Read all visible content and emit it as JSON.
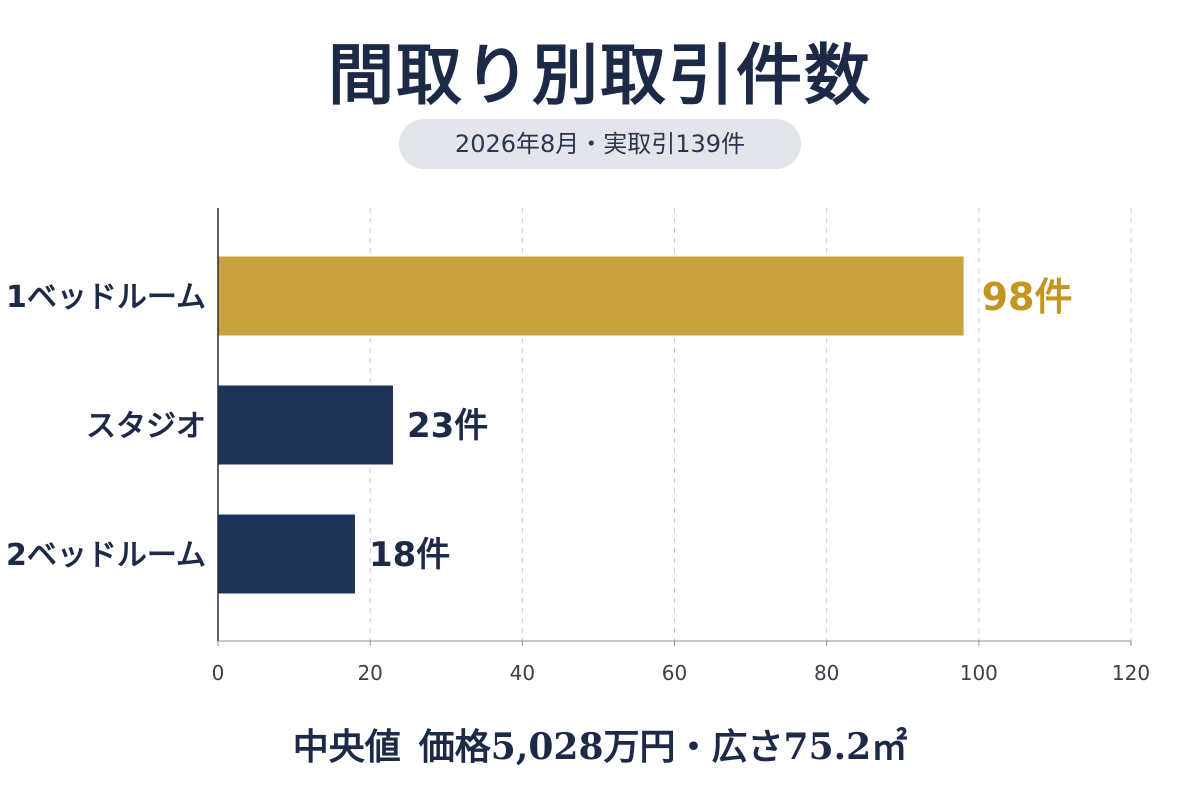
{
  "title": "間取り別取引件数",
  "subtitle": "2026年8月・実取引139件",
  "chart_data": {
    "type": "bar",
    "orientation": "horizontal",
    "categories": [
      "1ベッドルーム",
      "スタジオ",
      "2ベッドルーム"
    ],
    "values": [
      98,
      23,
      18
    ],
    "value_labels": [
      "98件",
      "23件",
      "18件"
    ],
    "bar_colors": [
      "#c9a13d",
      "#1f3358",
      "#1f3358"
    ],
    "value_label_colors": [
      "#c4951f",
      "#1c2a48",
      "#1c2a48"
    ],
    "xlim": [
      0,
      120
    ],
    "xticks": [
      0,
      20,
      40,
      60,
      80,
      100,
      120
    ],
    "grid": "vertical-dashed"
  },
  "footer": {
    "label": "中央値",
    "text": "価格5,028万円・広さ75.2㎡"
  }
}
